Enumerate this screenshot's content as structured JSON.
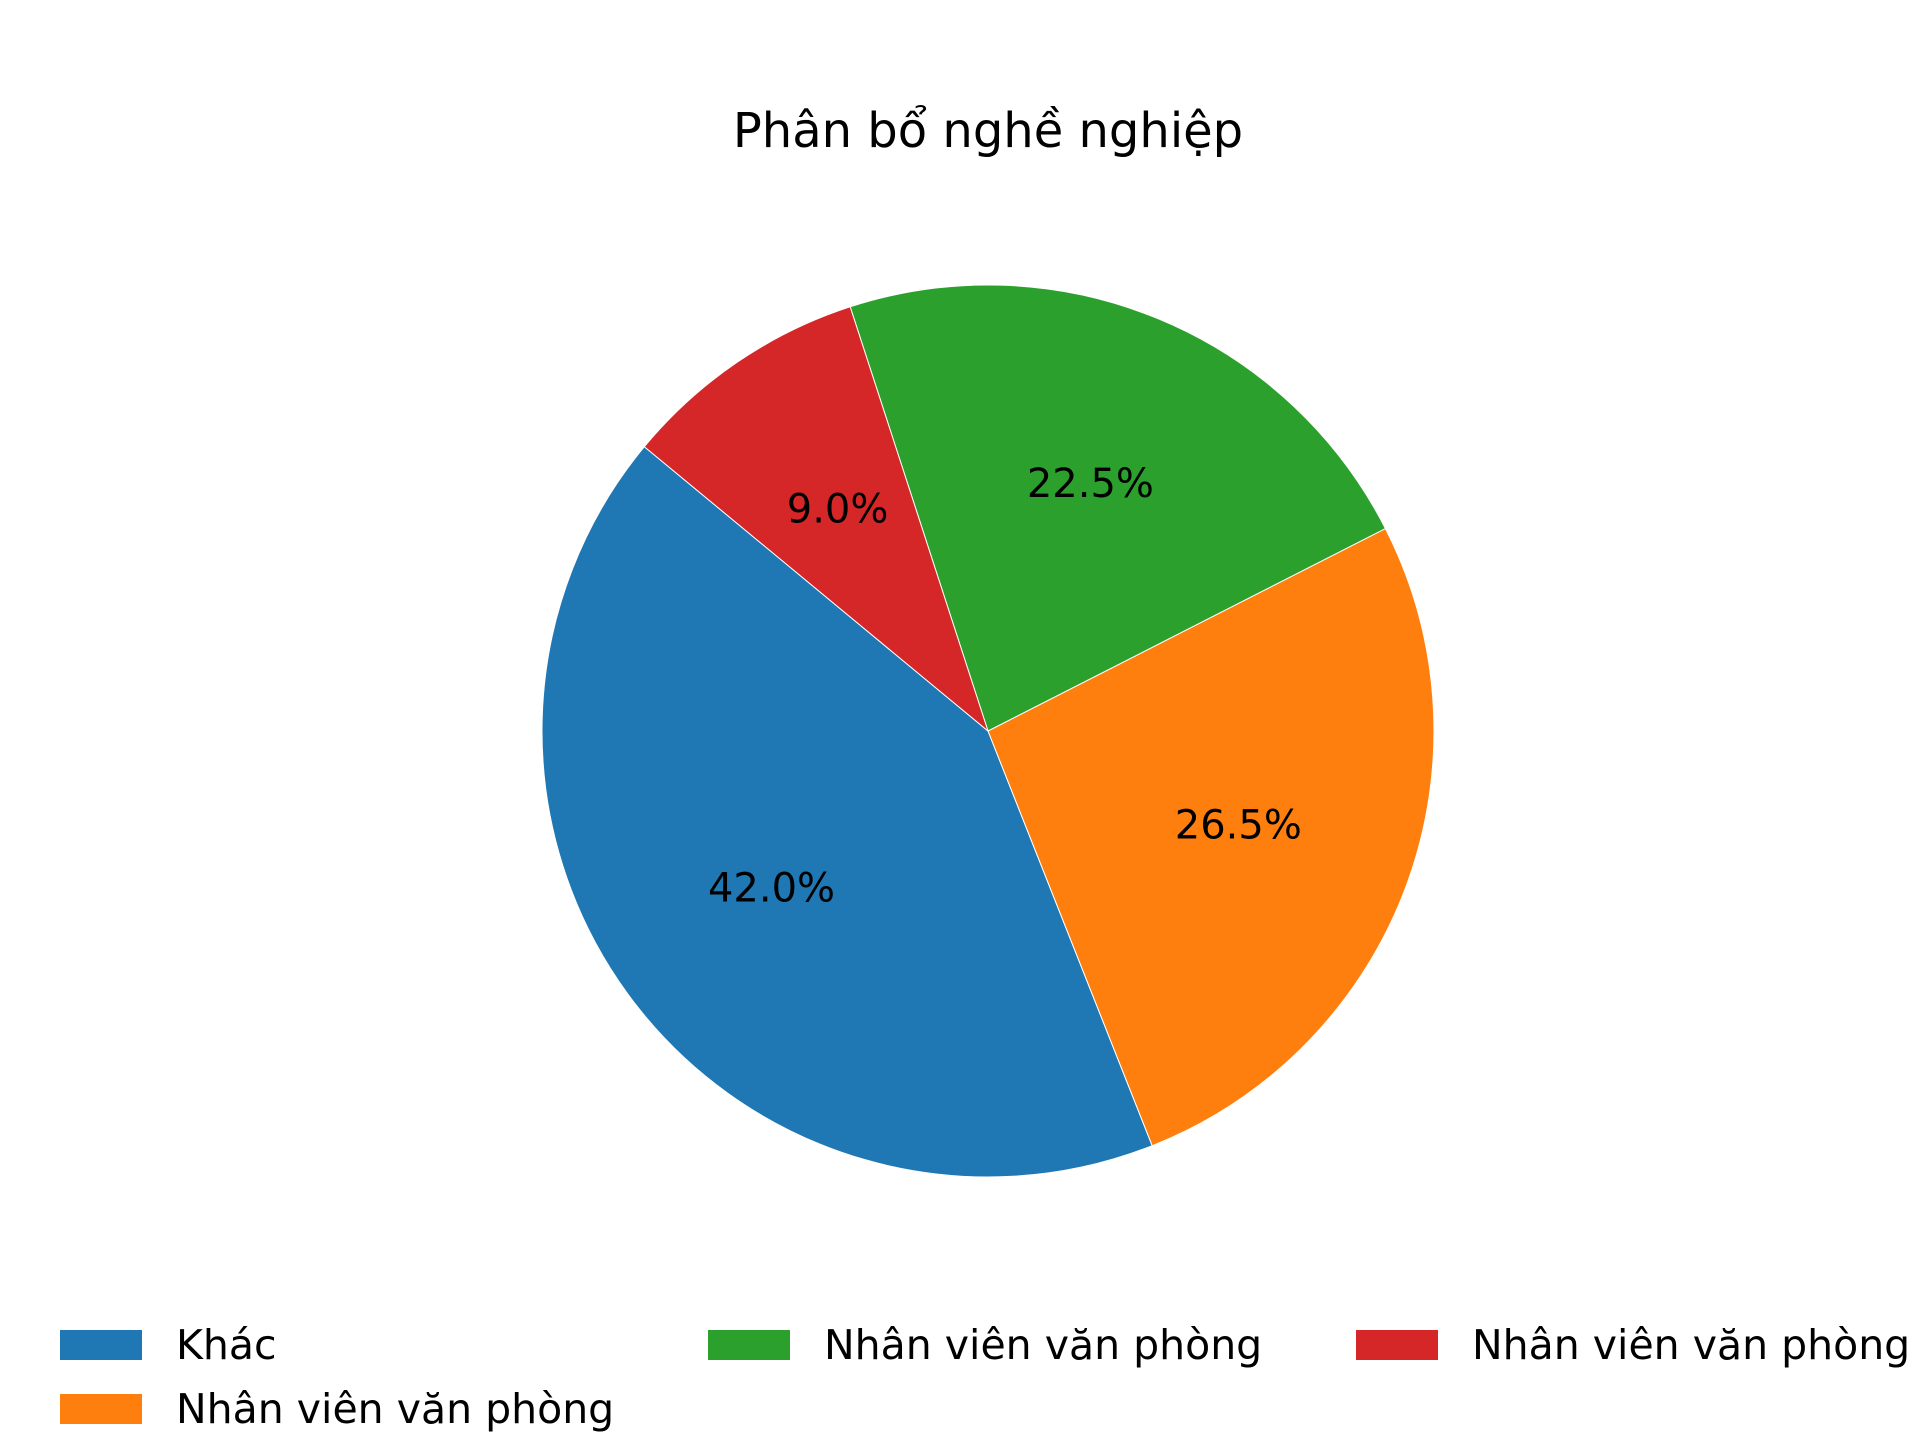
{
  "chart_data": {
    "type": "pie",
    "title": "Phân bổ nghề nghiệp",
    "slices": [
      {
        "label": "Khác",
        "value": 42.0,
        "display": "42.0%",
        "color": "#1f77b4"
      },
      {
        "label": "Nhân viên văn phòng",
        "value": 26.5,
        "display": "26.5%",
        "color": "#ff7f0e"
      },
      {
        "label": "Nhân viên văn phòng",
        "value": 22.5,
        "display": "22.5%",
        "color": "#2ca02c"
      },
      {
        "label": "Nhân viên văn phòng",
        "value": 9.0,
        "display": "9.0%",
        "color": "#d62728"
      }
    ],
    "legend_position": "bottom"
  }
}
